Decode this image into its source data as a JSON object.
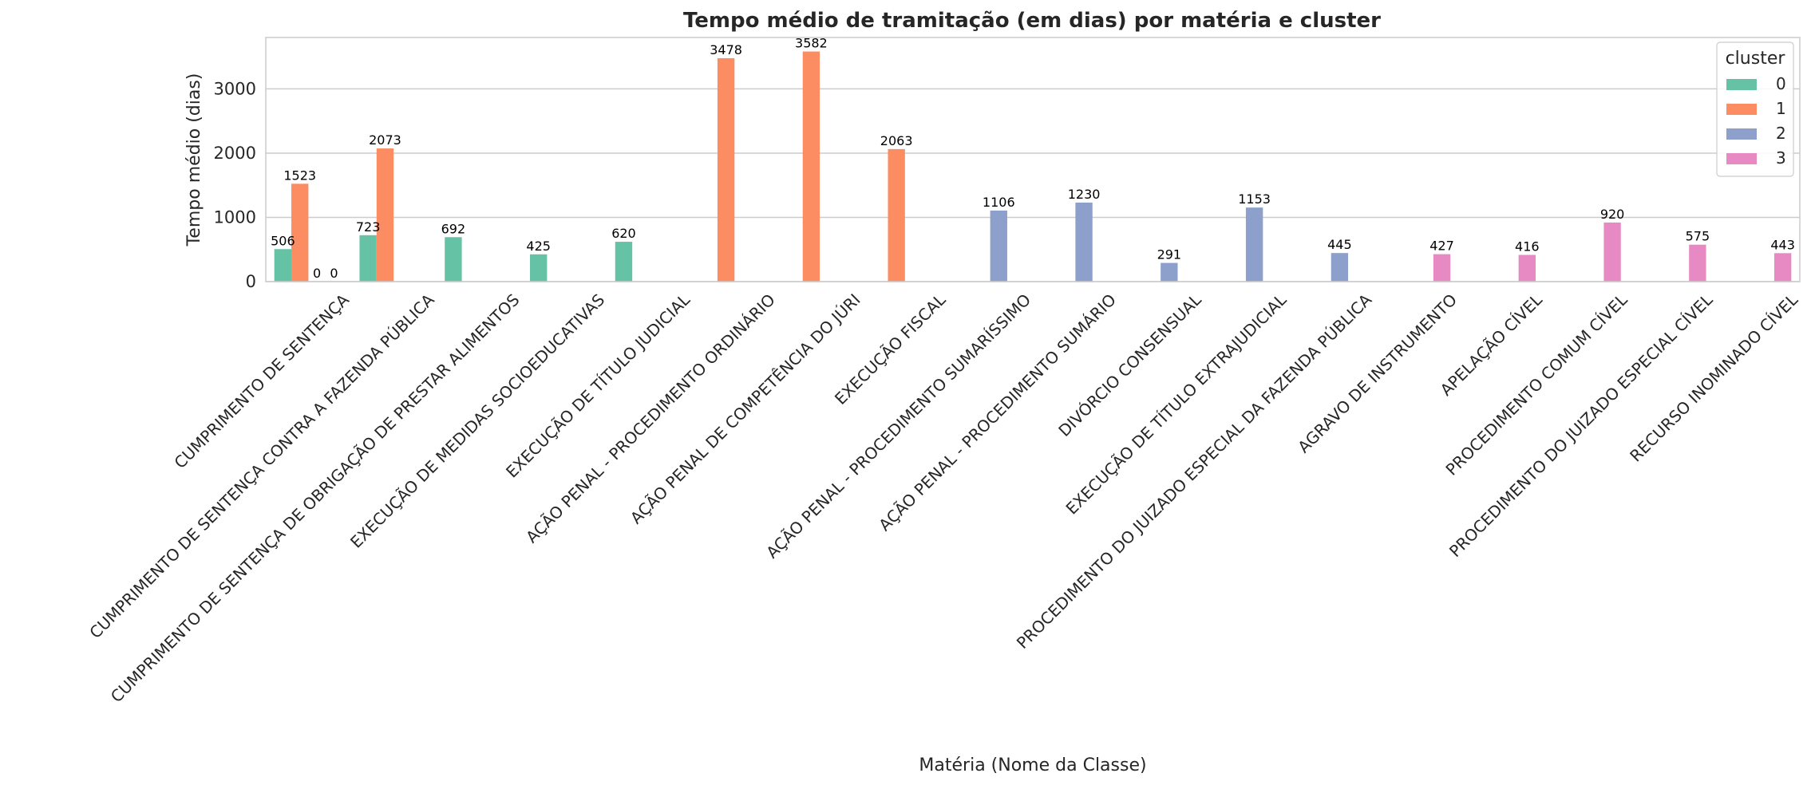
{
  "chart_data": {
    "type": "bar",
    "title": "Tempo médio de tramitação (em dias) por matéria e cluster",
    "xlabel": "Matéria (Nome da Classe)",
    "ylabel": "Tempo médio (dias)",
    "ylim": [
      0,
      3800
    ],
    "yticks": [
      0,
      1000,
      2000,
      3000
    ],
    "ytick_labels": [
      "0",
      "1000",
      "2000",
      "3000"
    ],
    "grid": "horizontal",
    "legend_title": "cluster",
    "legend_position": "upper-right",
    "categories": [
      "CUMPRIMENTO DE SENTENÇA",
      "CUMPRIMENTO DE SENTENÇA CONTRA A FAZENDA PÚBLICA",
      "CUMPRIMENTO DE SENTENÇA DE OBRIGAÇÃO DE PRESTAR ALIMENTOS",
      "EXECUÇÃO DE MEDIDAS SOCIOEDUCATIVAS",
      "EXECUÇÃO DE TÍTULO JUDICIAL",
      "AÇÃO PENAL - PROCEDIMENTO ORDINÁRIO",
      "AÇÃO PENAL DE COMPETÊNCIA DO JÚRI",
      "EXECUÇÃO FISCAL",
      "AÇÃO PENAL - PROCEDIMENTO SUMARÍSSIMO",
      "AÇÃO PENAL - PROCEDIMENTO SUMÁRIO",
      "DIVÓRCIO CONSENSUAL",
      "EXECUÇÃO DE TÍTULO EXTRAJUDICIAL",
      "PROCEDIMENTO DO JUIZADO ESPECIAL DA FAZENDA PÚBLICA",
      "AGRAVO DE INSTRUMENTO",
      "APELAÇÃO CÍVEL",
      "PROCEDIMENTO COMUM CÍVEL",
      "PROCEDIMENTO DO JUIZADO ESPECIAL CÍVEL",
      "RECURSO INOMINADO CÍVEL"
    ],
    "series": [
      {
        "name": "0",
        "color": "#66c2a5",
        "values": [
          506,
          723,
          692,
          425,
          620,
          null,
          null,
          null,
          null,
          null,
          null,
          null,
          null,
          null,
          null,
          null,
          null,
          null
        ],
        "labels": [
          "506",
          "723",
          "692",
          "425",
          "620",
          null,
          null,
          null,
          null,
          null,
          null,
          null,
          null,
          null,
          null,
          null,
          null,
          null
        ]
      },
      {
        "name": "1",
        "color": "#fc8d62",
        "values": [
          1523,
          2073,
          null,
          null,
          null,
          3478,
          3582,
          2063,
          null,
          null,
          null,
          null,
          null,
          null,
          null,
          null,
          null,
          null
        ],
        "labels": [
          "1523",
          "2073",
          null,
          null,
          null,
          "3478",
          "3582",
          "2063",
          null,
          null,
          null,
          null,
          null,
          null,
          null,
          null,
          null,
          null
        ]
      },
      {
        "name": "2",
        "color": "#8da0cb",
        "values": [
          0,
          null,
          null,
          null,
          null,
          null,
          null,
          null,
          1106,
          1230,
          291,
          1153,
          445,
          null,
          null,
          null,
          null,
          null
        ],
        "labels": [
          "0",
          null,
          null,
          null,
          null,
          null,
          null,
          null,
          "1106",
          "1230",
          "291",
          "1153",
          "445",
          null,
          null,
          null,
          null,
          null
        ]
      },
      {
        "name": "3",
        "color": "#e78ac3",
        "values": [
          0,
          null,
          null,
          null,
          null,
          null,
          null,
          null,
          null,
          null,
          null,
          null,
          null,
          427,
          416,
          920,
          575,
          443
        ],
        "labels": [
          "0",
          null,
          null,
          null,
          null,
          null,
          null,
          null,
          null,
          null,
          null,
          null,
          null,
          "427",
          "416",
          "920",
          "575",
          "443"
        ]
      }
    ]
  }
}
